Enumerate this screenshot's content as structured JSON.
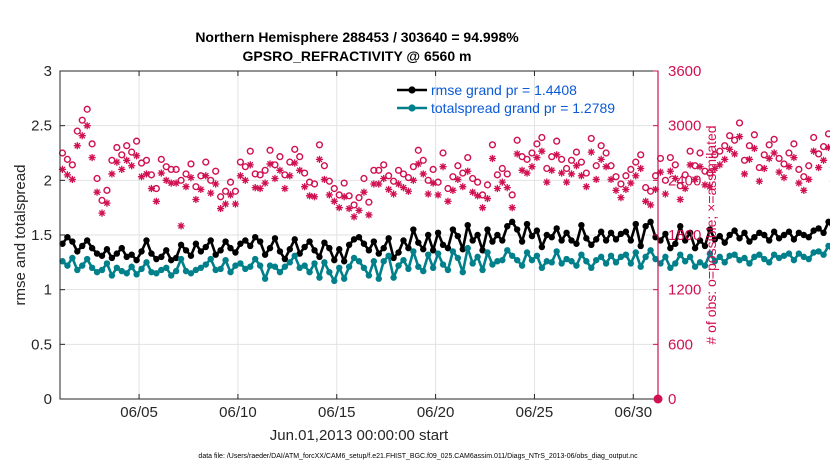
{
  "chart_data": {
    "type": "line",
    "title": "Northern Hemisphere 288453 / 303640 = 94.998%",
    "subtitle": "GPSRO_REFRACTIVITY @ 6560 m",
    "xlabel": "Jun.01,2013 00:00:00 start",
    "ylabel": "rmse and totalspread",
    "ylabel_right": "# of obs: o=possible; ×=assimilated",
    "footnote": "data file: /Users/raeder/DAI/ATM_forcXX/CAM6_setup/f.e21.FHIST_BGC.f09_025.CAM6assim.011/Diags_NTrS_2013-06/obs_diag_output.nc",
    "xlim": [
      1.0,
      31.25
    ],
    "ylim": [
      0,
      3
    ],
    "ylim_right": [
      0,
      3600
    ],
    "x_ticks": [
      5,
      10,
      15,
      20,
      25,
      30
    ],
    "x_tick_labels": [
      "06/05",
      "06/10",
      "06/15",
      "06/20",
      "06/25",
      "06/30"
    ],
    "y_ticks": [
      0,
      0.5,
      1,
      1.5,
      2,
      2.5,
      3
    ],
    "y_tick_labels": [
      "0",
      "0.5",
      "1",
      "1.5",
      "2",
      "2.5",
      "3"
    ],
    "y_right_ticks": [
      0,
      600,
      1200,
      1800,
      2400,
      3000,
      3600
    ],
    "y_right_tick_labels": [
      "0",
      "600",
      "1200",
      "1800",
      "2400",
      "3000",
      "3600"
    ],
    "x_step_days": 0.25,
    "x_start": 1.125,
    "series": [
      {
        "name": "rmse grand pr = 1.4408",
        "axis": "left",
        "color": "#000000",
        "values": [
          1.42,
          1.48,
          1.44,
          1.35,
          1.4,
          1.45,
          1.38,
          1.33,
          1.31,
          1.37,
          1.29,
          1.33,
          1.38,
          1.3,
          1.32,
          1.27,
          1.35,
          1.45,
          1.33,
          1.28,
          1.3,
          1.36,
          1.27,
          1.29,
          1.41,
          1.36,
          1.31,
          1.42,
          1.35,
          1.39,
          1.45,
          1.32,
          1.36,
          1.44,
          1.38,
          1.34,
          1.42,
          1.45,
          1.4,
          1.48,
          1.44,
          1.32,
          1.38,
          1.47,
          1.35,
          1.28,
          1.37,
          1.46,
          1.33,
          1.39,
          1.44,
          1.36,
          1.3,
          1.43,
          1.38,
          1.27,
          1.37,
          1.26,
          1.41,
          1.46,
          1.48,
          1.42,
          1.36,
          1.44,
          1.33,
          1.38,
          1.47,
          1.29,
          1.34,
          1.45,
          1.38,
          1.55,
          1.43,
          1.37,
          1.5,
          1.36,
          1.52,
          1.41,
          1.38,
          1.55,
          1.49,
          1.37,
          1.59,
          1.45,
          1.5,
          1.36,
          1.55,
          1.44,
          1.5,
          1.45,
          1.58,
          1.62,
          1.55,
          1.44,
          1.6,
          1.49,
          1.54,
          1.39,
          1.5,
          1.48,
          1.56,
          1.45,
          1.52,
          1.45,
          1.42,
          1.59,
          1.47,
          1.41,
          1.46,
          1.53,
          1.45,
          1.52,
          1.46,
          1.51,
          1.53,
          1.45,
          1.6,
          1.4,
          1.58,
          1.62,
          1.48,
          1.45,
          1.51,
          1.38,
          1.42,
          1.58,
          1.45,
          1.52,
          1.38,
          1.45,
          1.4,
          1.55,
          1.46,
          1.49,
          1.43,
          1.5,
          1.54,
          1.47,
          1.52,
          1.44,
          1.48,
          1.52,
          1.5,
          1.45,
          1.53,
          1.47,
          1.5,
          1.53,
          1.46,
          1.52,
          1.5,
          1.48,
          1.54,
          1.56,
          1.52,
          1.62,
          1.55,
          1.5,
          1.65,
          1.5,
          1.72,
          1.63,
          1.55,
          1.62,
          1.58,
          1.54,
          1.58,
          1.52,
          1.6,
          1.56,
          1.58,
          1.55,
          1.62,
          1.6,
          1.57,
          1.62,
          1.58,
          1.55,
          1.64,
          1.6,
          1.58,
          1.66,
          1.62,
          1.7,
          1.55,
          1.66,
          1.72,
          1.63,
          1.74,
          1.62,
          1.68,
          1.64,
          1.65,
          1.7,
          1.67
        ]
      },
      {
        "name": "totalspread grand pr = 1.2789",
        "axis": "left",
        "color": "#00808a",
        "values": [
          1.26,
          1.22,
          1.29,
          1.18,
          1.22,
          1.28,
          1.2,
          1.16,
          1.18,
          1.24,
          1.13,
          1.2,
          1.17,
          1.15,
          1.21,
          1.14,
          1.19,
          1.25,
          1.16,
          1.15,
          1.18,
          1.2,
          1.13,
          1.17,
          1.28,
          1.17,
          1.15,
          1.18,
          1.2,
          1.23,
          1.28,
          1.18,
          1.19,
          1.27,
          1.16,
          1.22,
          1.24,
          1.19,
          1.21,
          1.28,
          1.22,
          1.1,
          1.22,
          1.21,
          1.16,
          1.21,
          1.25,
          1.31,
          1.2,
          1.22,
          1.16,
          1.24,
          1.11,
          1.25,
          1.16,
          1.08,
          1.2,
          1.1,
          1.21,
          1.29,
          1.26,
          1.2,
          1.13,
          1.26,
          1.1,
          1.26,
          1.31,
          1.11,
          1.22,
          1.27,
          1.19,
          1.35,
          1.21,
          1.17,
          1.32,
          1.2,
          1.33,
          1.23,
          1.18,
          1.35,
          1.29,
          1.16,
          1.38,
          1.24,
          1.3,
          1.18,
          1.34,
          1.23,
          1.26,
          1.27,
          1.36,
          1.31,
          1.27,
          1.22,
          1.34,
          1.27,
          1.31,
          1.2,
          1.26,
          1.25,
          1.35,
          1.24,
          1.28,
          1.26,
          1.22,
          1.32,
          1.26,
          1.2,
          1.27,
          1.3,
          1.24,
          1.31,
          1.25,
          1.3,
          1.32,
          1.24,
          1.34,
          1.21,
          1.3,
          1.36,
          1.28,
          1.24,
          1.3,
          1.2,
          1.24,
          1.32,
          1.26,
          1.3,
          1.21,
          1.25,
          1.22,
          1.33,
          1.26,
          1.3,
          1.25,
          1.31,
          1.32,
          1.27,
          1.29,
          1.24,
          1.3,
          1.32,
          1.28,
          1.25,
          1.32,
          1.29,
          1.31,
          1.33,
          1.27,
          1.33,
          1.3,
          1.28,
          1.34,
          1.35,
          1.32,
          1.4,
          1.33,
          1.31,
          1.45,
          1.32,
          1.56,
          1.4,
          1.38,
          1.42,
          1.4,
          1.36,
          1.4,
          1.34,
          1.41,
          1.38,
          1.4,
          1.37,
          1.43,
          1.42,
          1.39,
          1.43,
          1.4,
          1.38,
          1.44,
          1.42,
          1.39,
          1.46,
          1.44,
          1.5,
          1.38,
          1.46,
          1.5,
          1.45,
          1.56,
          1.44,
          1.5,
          1.47,
          1.52,
          1.58,
          1.56
        ]
      },
      {
        "name": "possible observations",
        "axis": "right",
        "marker": "o",
        "color": "#d01050",
        "values": [
          2700,
          2630,
          2570,
          2940,
          3060,
          3180,
          2800,
          2420,
          2180,
          2290,
          2620,
          2760,
          2680,
          2780,
          2710,
          2830,
          2590,
          2620,
          2460,
          2310,
          2630,
          2550,
          2520,
          2520,
          2400,
          2470,
          2580,
          2330,
          2450,
          2600,
          2400,
          2500,
          2220,
          2280,
          2380,
          2280,
          2600,
          2550,
          2720,
          2470,
          2460,
          2510,
          2730,
          2570,
          2660,
          2460,
          2600,
          2740,
          2660,
          2480,
          2380,
          2360,
          2790,
          2560,
          2390,
          2310,
          2240,
          2370,
          2230,
          2130,
          2210,
          2420,
          2160,
          2510,
          2510,
          2570,
          2450,
          2390,
          2510,
          2470,
          2430,
          2550,
          2730,
          2620,
          2400,
          2520,
          2380,
          2700,
          2310,
          2440,
          2560,
          2480,
          2650,
          2420,
          2380,
          2240,
          2350,
          2790,
          2460,
          2530,
          2470,
          2240,
          2840,
          2660,
          2630,
          2700,
          2800,
          2870,
          2530,
          2660,
          2830,
          2630,
          2530,
          2620,
          2710,
          2600,
          2480,
          2860,
          2560,
          2780,
          2700,
          2560,
          2440,
          2360,
          2450,
          2520,
          2600,
          2680,
          2320,
          2280,
          2450,
          2640,
          2400,
          2650,
          2570,
          2340,
          2460,
          2720,
          2560,
          2700,
          2500,
          2480,
          2680,
          2720,
          2780,
          2890,
          2840,
          3030,
          2620,
          2780,
          2900,
          2540,
          2680,
          2790,
          2850,
          2640,
          2580,
          2700,
          2800,
          2520,
          2440,
          2560,
          2870,
          2690,
          2770,
          2910,
          2540,
          2660,
          2480,
          2620,
          2720,
          3080,
          2880,
          2960,
          2640,
          2560,
          2440,
          2340,
          2720,
          2630,
          2840,
          2580,
          2900,
          2810,
          3000,
          2930,
          2640,
          2540,
          2760,
          2780,
          2790,
          2880,
          2620,
          2460,
          2900,
          3060,
          2940,
          3150,
          3060,
          2700,
          2720,
          2930,
          3030,
          3260
        ]
      },
      {
        "name": "assimilated observations",
        "axis": "right",
        "marker": "x",
        "color": "#d01050",
        "values": [
          2520,
          2460,
          2410,
          2780,
          2890,
          3000,
          2650,
          2270,
          2040,
          2150,
          2470,
          2600,
          2520,
          2620,
          2560,
          2670,
          2440,
          2470,
          2310,
          2170,
          2480,
          2400,
          2370,
          2370,
          1900,
          2330,
          2430,
          2190,
          2300,
          2450,
          2260,
          2360,
          2090,
          2140,
          2240,
          2140,
          2450,
          2400,
          2570,
          2320,
          2310,
          2370,
          2580,
          2420,
          2510,
          2310,
          2450,
          2590,
          2510,
          2330,
          2230,
          2220,
          2630,
          2410,
          2240,
          2170,
          2100,
          2220,
          2090,
          2000,
          2070,
          2270,
          2020,
          2360,
          2360,
          2420,
          2300,
          2250,
          2360,
          2320,
          2280,
          2400,
          2580,
          2470,
          2250,
          2370,
          2240,
          2550,
          2170,
          2290,
          2410,
          2330,
          2500,
          2270,
          2230,
          2100,
          2200,
          2640,
          2310,
          2380,
          2320,
          2100,
          2690,
          2510,
          2480,
          2550,
          2650,
          2720,
          2380,
          2510,
          2680,
          2480,
          2380,
          2470,
          2560,
          2450,
          2330,
          2710,
          2410,
          2630,
          2550,
          2410,
          2290,
          2210,
          2300,
          2370,
          2450,
          2530,
          2170,
          2130,
          2300,
          2490,
          2250,
          2500,
          2420,
          2190,
          2310,
          2570,
          2410,
          2550,
          2350,
          2330,
          2530,
          2570,
          2630,
          2740,
          2690,
          2880,
          2470,
          2630,
          2750,
          2390,
          2530,
          2640,
          2700,
          2490,
          2430,
          2550,
          2650,
          2370,
          2290,
          2410,
          2720,
          2540,
          2620,
          2760,
          2390,
          2510,
          2330,
          2470,
          2570,
          2930,
          2730,
          2810,
          2490,
          2410,
          2290,
          2190,
          2570,
          2480,
          2690,
          2430,
          2750,
          2660,
          2850,
          2780,
          2490,
          2390,
          2610,
          2630,
          2640,
          2730,
          2470,
          2310,
          2750,
          2910,
          2790,
          3000,
          2910,
          2550,
          2570,
          2780,
          2880,
          3100
        ]
      }
    ],
    "legend": [
      {
        "label": "rmse grand pr = 1.4408",
        "color": "#000000"
      },
      {
        "label": "totalspread grand pr = 1.2789",
        "color": "#00808a"
      }
    ],
    "legend_position": "top-right"
  }
}
